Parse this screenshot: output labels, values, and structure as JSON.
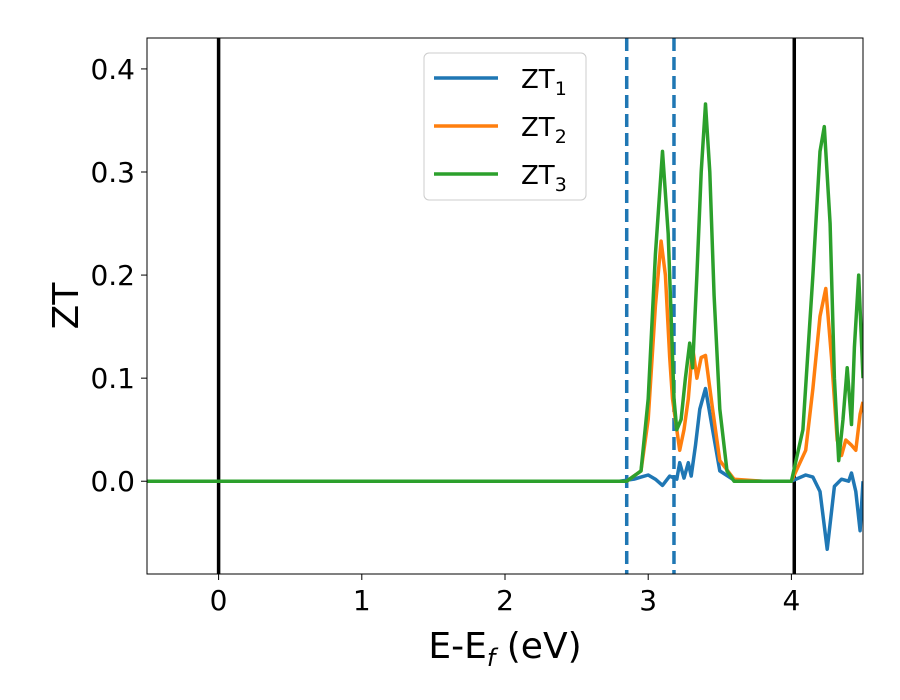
{
  "chart_data": {
    "type": "line",
    "xlabel": "E-E",
    "xlabel_sub": "f",
    "xlabel_unit": " (eV)",
    "ylabel": "ZT",
    "xlim": [
      -0.5,
      4.5
    ],
    "ylim": [
      -0.09,
      0.43
    ],
    "xticks": [
      0,
      1,
      2,
      3,
      4
    ],
    "xtick_labels": [
      "0",
      "1",
      "2",
      "3",
      "4"
    ],
    "yticks": [
      0.0,
      0.1,
      0.2,
      0.3,
      0.4
    ],
    "ytick_labels": [
      "0.0",
      "0.1",
      "0.2",
      "0.3",
      "0.4"
    ],
    "grid": false,
    "legend_position": "top-center",
    "vlines": [
      {
        "x": 0.0,
        "style": "solid",
        "color": "#000000"
      },
      {
        "x": 4.02,
        "style": "solid",
        "color": "#000000"
      },
      {
        "x": 2.85,
        "style": "dashed",
        "color": "#1f77b4"
      },
      {
        "x": 3.18,
        "style": "dashed",
        "color": "#1f77b4"
      }
    ],
    "series": [
      {
        "name": "ZT",
        "sub": "1",
        "color": "#1f77b4",
        "x": [
          -0.5,
          2.8,
          2.9,
          2.95,
          3.0,
          3.05,
          3.1,
          3.15,
          3.2,
          3.22,
          3.25,
          3.28,
          3.3,
          3.33,
          3.36,
          3.4,
          3.45,
          3.5,
          3.6,
          3.8,
          4.0,
          4.1,
          4.15,
          4.2,
          4.25,
          4.3,
          4.35,
          4.4,
          4.42,
          4.45,
          4.48,
          4.5
        ],
        "values": [
          0.0,
          0.0,
          0.002,
          0.004,
          0.006,
          0.002,
          -0.004,
          0.005,
          0.002,
          0.018,
          0.003,
          0.018,
          0.005,
          0.035,
          0.07,
          0.09,
          0.05,
          0.01,
          0.001,
          0.0,
          0.0,
          0.006,
          0.004,
          -0.01,
          -0.066,
          -0.005,
          0.002,
          0.0,
          0.008,
          -0.01,
          -0.048,
          0.0
        ]
      },
      {
        "name": "ZT",
        "sub": "2",
        "color": "#ff7f0e",
        "x": [
          -0.5,
          2.85,
          2.95,
          3.0,
          3.05,
          3.09,
          3.12,
          3.15,
          3.17,
          3.2,
          3.22,
          3.25,
          3.28,
          3.31,
          3.34,
          3.37,
          3.4,
          3.45,
          3.5,
          3.6,
          3.8,
          4.0,
          4.1,
          4.15,
          4.2,
          4.24,
          4.28,
          4.32,
          4.35,
          4.38,
          4.42,
          4.45,
          4.48,
          4.5
        ],
        "values": [
          0.0,
          0.0,
          0.01,
          0.06,
          0.17,
          0.233,
          0.2,
          0.12,
          0.08,
          0.05,
          0.03,
          0.05,
          0.08,
          0.13,
          0.1,
          0.12,
          0.122,
          0.07,
          0.02,
          0.002,
          0.0,
          0.0,
          0.03,
          0.09,
          0.16,
          0.187,
          0.12,
          0.04,
          0.025,
          0.04,
          0.035,
          0.03,
          0.065,
          0.077
        ]
      },
      {
        "name": "ZT",
        "sub": "3",
        "color": "#2ca02c",
        "x": [
          -0.5,
          2.85,
          2.95,
          3.0,
          3.05,
          3.1,
          3.14,
          3.18,
          3.2,
          3.23,
          3.26,
          3.29,
          3.31,
          3.34,
          3.37,
          3.4,
          3.43,
          3.46,
          3.5,
          3.55,
          3.6,
          3.8,
          4.0,
          4.08,
          4.15,
          4.2,
          4.23,
          4.27,
          4.3,
          4.33,
          4.36,
          4.39,
          4.42,
          4.44,
          4.47,
          4.5
        ],
        "values": [
          0.0,
          0.0,
          0.01,
          0.08,
          0.22,
          0.32,
          0.24,
          0.08,
          0.05,
          0.06,
          0.1,
          0.134,
          0.11,
          0.2,
          0.3,
          0.366,
          0.3,
          0.18,
          0.07,
          0.01,
          0.0,
          0.0,
          0.0,
          0.05,
          0.2,
          0.32,
          0.344,
          0.25,
          0.1,
          0.02,
          0.06,
          0.11,
          0.055,
          0.13,
          0.2,
          0.1
        ]
      }
    ]
  }
}
